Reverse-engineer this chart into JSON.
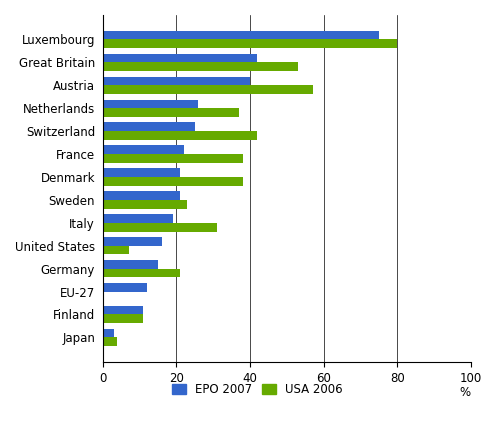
{
  "categories": [
    "Luxembourg",
    "Great Britain",
    "Austria",
    "Netherlands",
    "Switzerland",
    "France",
    "Denmark",
    "Sweden",
    "Italy",
    "United States",
    "Germany",
    "EU-27",
    "Finland",
    "Japan"
  ],
  "epo_2007": [
    75,
    42,
    40,
    26,
    25,
    22,
    21,
    21,
    19,
    16,
    15,
    12,
    11,
    3
  ],
  "usa_2006": [
    80,
    53,
    57,
    37,
    42,
    38,
    38,
    23,
    31,
    7,
    21,
    0,
    11,
    4
  ],
  "epo_color": "#3366CC",
  "usa_color": "#66AA00",
  "xlim": [
    0,
    100
  ],
  "xticks": [
    0,
    20,
    40,
    60,
    80,
    100
  ],
  "ylabel_pct": "%",
  "legend_labels": [
    "EPO 2007",
    "USA 2006"
  ],
  "bar_height": 0.38,
  "figsize": [
    4.97,
    4.47
  ],
  "dpi": 100
}
